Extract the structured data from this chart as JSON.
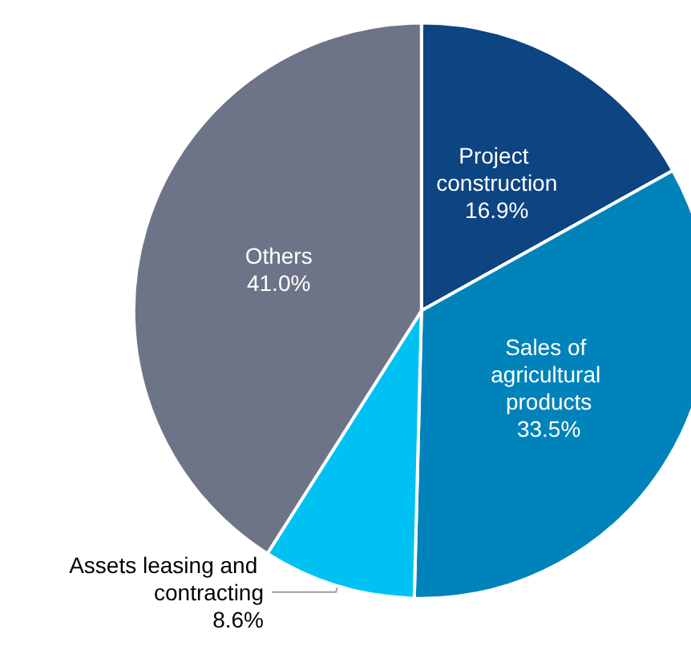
{
  "chart_data": {
    "type": "pie",
    "categories": [
      "Project construction",
      "Sales of agricultural products",
      "Assets leasing and contracting",
      "Others"
    ],
    "values": [
      16.9,
      33.5,
      8.6,
      41.0
    ],
    "value_labels": [
      "16.9%",
      "33.5%",
      "8.6%",
      "41.0%"
    ],
    "colors": [
      "#0d4482",
      "#0083ba",
      "#00c2f2",
      "#6e7488"
    ],
    "legend": false
  }
}
